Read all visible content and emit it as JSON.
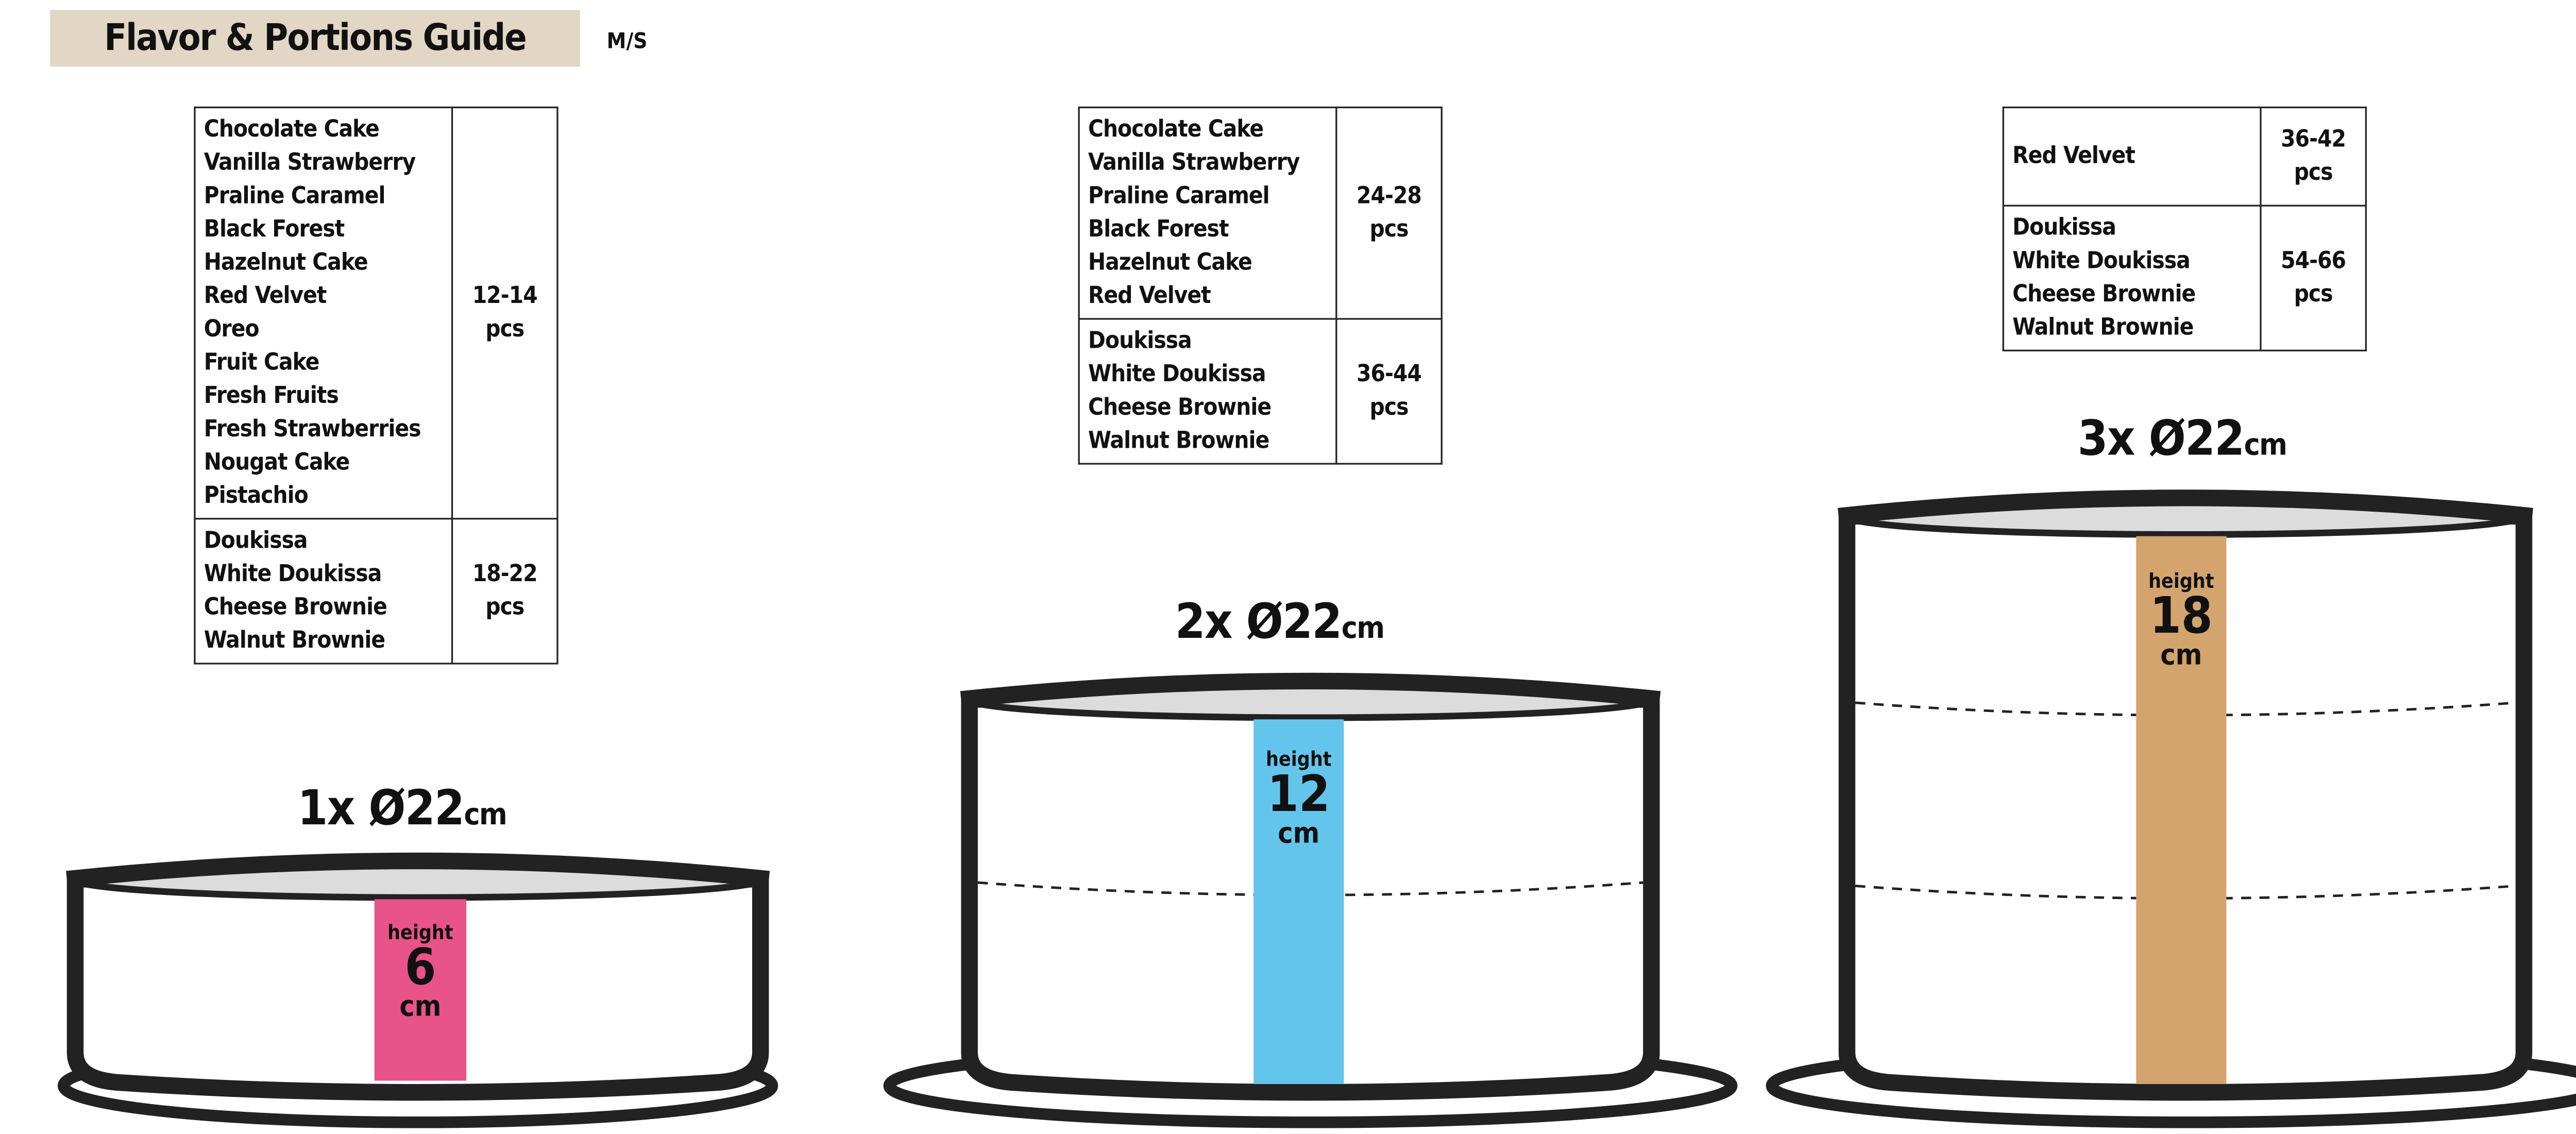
{
  "header": {
    "title": "Flavor & Portions Guide",
    "subtitle": "M/S"
  },
  "colors": {
    "title_bg": "#e2d6c4",
    "band_6cm": "#e8538a",
    "band_12cm": "#64c5ec",
    "band_18cm": "#d4a46e"
  },
  "cakes": [
    {
      "label": "1x Ø22",
      "unit": "cm",
      "height_label": "height",
      "height_value": "6",
      "height_unit": "cm",
      "layers": 1,
      "table": [
        {
          "flavors": [
            "Chocolate Cake",
            "Vanilla Strawberry",
            "Praline Caramel",
            "Black Forest",
            "Hazelnut Cake",
            "Red Velvet",
            "Oreo",
            "Fruit Cake",
            "Fresh Fruits",
            "Fresh Strawberries",
            "Nougat Cake",
            "Pistachio"
          ],
          "portions": "12-14",
          "unit": "pcs"
        },
        {
          "flavors": [
            "Doukissa",
            "White Doukissa",
            "Cheese Brownie",
            "Walnut Brownie"
          ],
          "portions": "18-22",
          "unit": "pcs"
        }
      ]
    },
    {
      "label": "2x Ø22",
      "unit": "cm",
      "height_label": "height",
      "height_value": "12",
      "height_unit": "cm",
      "layers": 2,
      "table": [
        {
          "flavors": [
            "Chocolate Cake",
            "Vanilla Strawberry",
            "Praline Caramel",
            "Black Forest",
            "Hazelnut Cake",
            "Red Velvet"
          ],
          "portions": "24-28",
          "unit": "pcs"
        },
        {
          "flavors": [
            "Doukissa",
            "White Doukissa",
            "Cheese Brownie",
            "Walnut Brownie"
          ],
          "portions": "36-44",
          "unit": "pcs"
        }
      ]
    },
    {
      "label": "3x Ø22",
      "unit": "cm",
      "height_label": "height",
      "height_value": "18",
      "height_unit": "cm",
      "layers": 3,
      "table": [
        {
          "flavors": [
            "Red Velvet"
          ],
          "portions": "36-42",
          "unit": "pcs"
        },
        {
          "flavors": [
            "Doukissa",
            "White Doukissa",
            "Cheese Brownie",
            "Walnut Brownie"
          ],
          "portions": "54-66",
          "unit": "pcs"
        }
      ]
    }
  ]
}
